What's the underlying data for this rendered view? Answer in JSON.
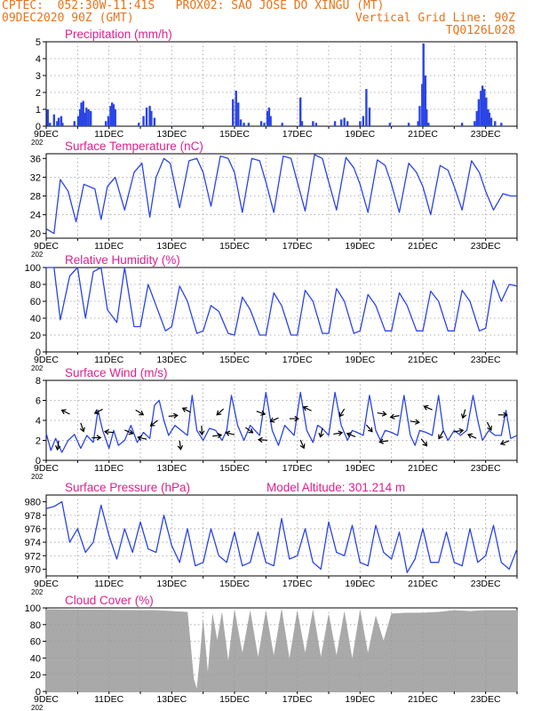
{
  "header": {
    "line1": "CPTEC:  052:30W-11:41S   PROX02: SAO JOSE DO XINGU (MT)",
    "line2_left": "09DEC2020 90Z (GMT)",
    "line2_right": "Vertical Grid Line: 90Z",
    "line3_right": "TQ0126L028"
  },
  "colors": {
    "series": "#2a44e6",
    "title": "#e0208c",
    "header": "#e8741a",
    "cloud": "#a9a9a9",
    "grid": "#9a9a9a"
  },
  "x_axis": {
    "ticks": [
      "9DEC",
      "11DEC",
      "13DEC",
      "15DEC",
      "17DEC",
      "19DEC",
      "21DEC",
      "23DEC"
    ],
    "tick_days": [
      9,
      11,
      13,
      15,
      17,
      19,
      21,
      23
    ],
    "range_days": [
      9,
      24
    ],
    "year_fragment": "202"
  },
  "chart_data": [
    {
      "type": "bar",
      "title": "Precipitation (mm/h)",
      "ylim": [
        0,
        5
      ],
      "yticks": [
        "0",
        "1",
        "2",
        "3",
        "4",
        "5"
      ],
      "ytick_values": [
        0,
        1,
        2,
        3,
        4,
        5
      ],
      "x": [
        9.05,
        9.12,
        9.25,
        9.35,
        9.4,
        9.48,
        9.52,
        9.9,
        10.02,
        10.08,
        10.12,
        10.18,
        10.22,
        10.28,
        10.35,
        10.42,
        10.9,
        10.98,
        11.05,
        11.1,
        11.15,
        11.2,
        11.95,
        12.1,
        12.2,
        12.3,
        12.35,
        12.45,
        14.95,
        15.05,
        15.12,
        15.2,
        15.3,
        15.45,
        15.85,
        15.95,
        16.05,
        16.1,
        16.15,
        16.52,
        17.1,
        17.15,
        17.5,
        17.6,
        18.2,
        18.4,
        18.5,
        18.6,
        19.0,
        19.1,
        19.2,
        19.3,
        19.95,
        20.55,
        20.85,
        20.9,
        20.98,
        21.02,
        21.08,
        21.12,
        21.18,
        22.25,
        22.65,
        22.72,
        22.78,
        22.85,
        22.9,
        22.96,
        23.02,
        23.08,
        23.12,
        23.18,
        23.3,
        23.5
      ],
      "values": [
        1.0,
        0.2,
        0.7,
        0.3,
        0.5,
        0.6,
        0.2,
        0.3,
        0.6,
        1.0,
        1.4,
        1.5,
        0.8,
        1.1,
        1.0,
        0.9,
        0.3,
        0.6,
        1.2,
        1.4,
        1.3,
        1.0,
        0.2,
        0.6,
        1.1,
        1.2,
        0.9,
        0.5,
        1.6,
        2.1,
        1.4,
        0.4,
        0.2,
        0.2,
        0.3,
        0.2,
        0.9,
        1.1,
        0.6,
        0.2,
        1.7,
        0.3,
        0.3,
        0.2,
        0.3,
        0.4,
        0.5,
        0.3,
        0.3,
        0.6,
        2.2,
        1.1,
        0.2,
        0.2,
        0.3,
        1.2,
        2.5,
        4.9,
        3.0,
        1.0,
        0.2,
        0.2,
        0.3,
        0.9,
        1.6,
        2.1,
        2.4,
        2.2,
        1.7,
        1.0,
        0.8,
        0.5,
        0.3,
        0.2
      ]
    },
    {
      "type": "line",
      "title": "Surface Temperature (nC)",
      "ylim": [
        19,
        37
      ],
      "yticks": [
        "20",
        "24",
        "28",
        "32",
        "36"
      ],
      "ytick_values": [
        20,
        24,
        28,
        32,
        36
      ],
      "x": [
        9.0,
        9.25,
        9.45,
        9.7,
        9.95,
        10.2,
        10.55,
        10.75,
        10.95,
        11.2,
        11.5,
        11.8,
        12.05,
        12.3,
        12.5,
        12.75,
        12.95,
        13.25,
        13.55,
        13.8,
        14.0,
        14.25,
        14.55,
        14.8,
        15.0,
        15.25,
        15.55,
        15.8,
        16.0,
        16.25,
        16.55,
        16.8,
        17.0,
        17.25,
        17.55,
        17.8,
        18.0,
        18.25,
        18.55,
        18.8,
        19.0,
        19.25,
        19.55,
        19.8,
        20.0,
        20.25,
        20.55,
        20.8,
        21.0,
        21.25,
        21.55,
        21.8,
        22.0,
        22.25,
        22.55,
        22.8,
        23.0,
        23.25,
        23.55,
        23.8,
        24.0
      ],
      "values": [
        21,
        20,
        31.5,
        29,
        22.5,
        30.5,
        29.5,
        23,
        30,
        32,
        25,
        33,
        35,
        23.5,
        32,
        36,
        35,
        25.5,
        35.5,
        36,
        33,
        25.8,
        36.5,
        36,
        33,
        24.5,
        36,
        35.5,
        31,
        24.5,
        36.5,
        36,
        31,
        24.8,
        36.8,
        36,
        31,
        25,
        36.2,
        34,
        30.5,
        24.5,
        35.7,
        34.5,
        30.5,
        24.5,
        35,
        33,
        30,
        24,
        34.5,
        33.5,
        30,
        25,
        35.5,
        33,
        29,
        25,
        28.5,
        28,
        28
      ]
    },
    {
      "type": "line",
      "title": "Relative Humidity (%)",
      "ylim": [
        0,
        100
      ],
      "yticks": [
        "0",
        "20",
        "40",
        "60",
        "80",
        "100"
      ],
      "ytick_values": [
        0,
        20,
        40,
        60,
        80,
        100
      ],
      "x": [
        9.0,
        9.25,
        9.45,
        9.75,
        10.0,
        10.25,
        10.5,
        10.75,
        10.95,
        11.25,
        11.5,
        11.8,
        12.0,
        12.25,
        12.5,
        12.8,
        13.0,
        13.25,
        13.5,
        13.8,
        14.0,
        14.25,
        14.5,
        14.8,
        15.0,
        15.25,
        15.5,
        15.8,
        16.0,
        16.25,
        16.5,
        16.8,
        17.0,
        17.25,
        17.5,
        17.8,
        18.0,
        18.25,
        18.5,
        18.8,
        19.0,
        19.25,
        19.5,
        19.8,
        20.0,
        20.25,
        20.5,
        20.8,
        21.0,
        21.25,
        21.5,
        21.8,
        22.0,
        22.25,
        22.5,
        22.8,
        23.0,
        23.25,
        23.5,
        23.75,
        24.0
      ],
      "values": [
        100,
        100,
        38,
        90,
        100,
        40,
        95,
        100,
        50,
        35,
        100,
        30,
        30,
        80,
        55,
        25,
        30,
        78,
        60,
        22,
        25,
        55,
        48,
        22,
        20,
        65,
        50,
        20,
        20,
        70,
        55,
        20,
        20,
        73,
        60,
        22,
        22,
        75,
        60,
        22,
        25,
        68,
        55,
        25,
        25,
        70,
        55,
        25,
        25,
        72,
        60,
        25,
        25,
        73,
        60,
        25,
        28,
        85,
        60,
        80,
        78
      ]
    },
    {
      "type": "line",
      "title": "Surface Wind (m/s)",
      "ylim": [
        0,
        8
      ],
      "yticks": [
        "0",
        "2",
        "4",
        "6",
        "8"
      ],
      "ytick_values": [
        0,
        2,
        4,
        6,
        8
      ],
      "x": [
        9.0,
        9.15,
        9.3,
        9.5,
        9.7,
        9.9,
        10.1,
        10.3,
        10.5,
        10.65,
        10.8,
        11.0,
        11.15,
        11.3,
        11.5,
        11.7,
        11.9,
        12.1,
        12.3,
        12.45,
        12.6,
        12.75,
        12.9,
        13.1,
        13.3,
        13.5,
        13.65,
        13.8,
        14.0,
        14.2,
        14.4,
        14.6,
        14.75,
        14.9,
        15.1,
        15.3,
        15.5,
        15.65,
        15.8,
        16.0,
        16.2,
        16.4,
        16.6,
        16.75,
        16.9,
        17.1,
        17.3,
        17.5,
        17.65,
        17.8,
        18.0,
        18.2,
        18.4,
        18.6,
        18.75,
        18.9,
        19.1,
        19.3,
        19.5,
        19.65,
        19.8,
        20.0,
        20.2,
        20.4,
        20.6,
        20.75,
        20.9,
        21.1,
        21.3,
        21.5,
        21.65,
        21.8,
        22.0,
        22.2,
        22.4,
        22.6,
        22.75,
        22.9,
        23.1,
        23.3,
        23.5,
        23.65,
        23.8,
        24.0
      ],
      "values": [
        2.7,
        1.0,
        2.2,
        0.8,
        2.0,
        2.6,
        1.2,
        2.5,
        1.8,
        5.0,
        3.0,
        1.2,
        3.0,
        1.5,
        2.0,
        3.5,
        1.8,
        2.8,
        2.2,
        5.5,
        6.0,
        4.0,
        2.5,
        3.5,
        3.0,
        2.5,
        6.5,
        3.0,
        2.0,
        3.2,
        3.0,
        2.0,
        3.0,
        6.5,
        3.5,
        2.0,
        3.5,
        3.0,
        2.5,
        6.8,
        3.0,
        1.5,
        3.5,
        3.0,
        2.5,
        6.8,
        3.0,
        1.8,
        3.5,
        3.2,
        2.5,
        6.8,
        3.5,
        2.0,
        3.0,
        2.8,
        2.5,
        6.5,
        3.0,
        2.0,
        3.0,
        2.8,
        2.5,
        6.5,
        2.5,
        1.5,
        3.0,
        2.8,
        2.5,
        6.5,
        3.0,
        2.0,
        3.0,
        2.5,
        3.0,
        6.5,
        4.0,
        2.0,
        3.0,
        2.5,
        2.5,
        5.0,
        2.2,
        2.5
      ]
    },
    {
      "type": "line",
      "title": "Surface Pressure (hPa)",
      "ylim": [
        969,
        981
      ],
      "yticks": [
        "970",
        "972",
        "974",
        "976",
        "978",
        "980"
      ],
      "ytick_values": [
        970,
        972,
        974,
        976,
        978,
        980
      ],
      "annotation": "Model Altitude: 301.214  m",
      "x": [
        9.0,
        9.25,
        9.5,
        9.75,
        10.0,
        10.25,
        10.5,
        10.75,
        11.0,
        11.25,
        11.5,
        11.75,
        12.0,
        12.25,
        12.5,
        12.75,
        13.0,
        13.25,
        13.5,
        13.75,
        14.0,
        14.25,
        14.5,
        14.75,
        15.0,
        15.25,
        15.5,
        15.75,
        16.0,
        16.25,
        16.5,
        16.75,
        17.0,
        17.25,
        17.5,
        17.75,
        18.0,
        18.25,
        18.5,
        18.75,
        19.0,
        19.25,
        19.5,
        19.75,
        20.0,
        20.25,
        20.5,
        20.75,
        21.0,
        21.25,
        21.5,
        21.75,
        22.0,
        22.25,
        22.5,
        22.75,
        23.0,
        23.25,
        23.5,
        23.75,
        24.0
      ],
      "values": [
        979,
        979.3,
        980,
        974,
        976,
        972.5,
        974,
        979.5,
        975,
        971.5,
        976,
        972.5,
        977,
        973,
        972.5,
        978,
        973.5,
        971,
        976,
        970.5,
        971,
        976,
        972,
        971,
        975.5,
        970.5,
        971,
        975.5,
        971,
        970.5,
        977.5,
        971.5,
        972,
        976,
        971,
        970,
        977,
        972.5,
        972,
        976.5,
        971,
        970.5,
        976.5,
        972.5,
        971.5,
        975.5,
        969.5,
        971.5,
        976,
        971,
        971,
        975.5,
        971,
        970.5,
        976,
        971,
        972,
        976.5,
        971,
        970,
        973
      ]
    },
    {
      "type": "area",
      "title": "Cloud Cover (%)",
      "ylim": [
        0,
        100
      ],
      "yticks": [
        "0",
        "20",
        "40",
        "60",
        "80",
        "100"
      ],
      "ytick_values": [
        0,
        20,
        40,
        60,
        80,
        100
      ],
      "x": [
        9.0,
        12.5,
        13.5,
        13.7,
        13.8,
        13.9,
        14.0,
        14.15,
        14.3,
        14.45,
        14.6,
        14.8,
        15.0,
        15.25,
        15.5,
        15.75,
        16.0,
        16.25,
        16.5,
        16.75,
        17.0,
        17.25,
        17.5,
        17.75,
        18.0,
        18.25,
        18.5,
        18.75,
        19.0,
        19.25,
        19.5,
        19.75,
        20.0,
        20.5,
        21.0,
        21.5,
        22.0,
        22.5,
        23.0,
        24.0
      ],
      "values": [
        98,
        97,
        95,
        15,
        2,
        40,
        85,
        20,
        92,
        60,
        94,
        35,
        97,
        45,
        96,
        40,
        96,
        42,
        98,
        38,
        96,
        45,
        97,
        40,
        92,
        42,
        95,
        38,
        97,
        45,
        90,
        60,
        93,
        94,
        94,
        95,
        97,
        96,
        97,
        97
      ]
    }
  ]
}
